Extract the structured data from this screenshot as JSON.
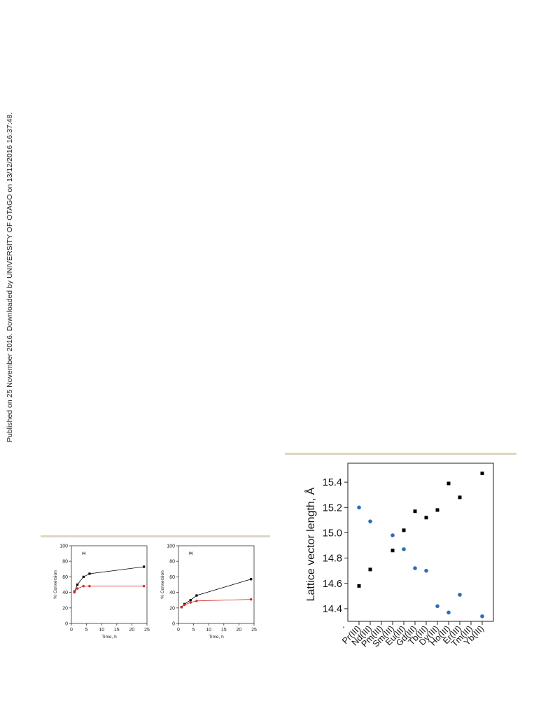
{
  "page": {
    "side_note": "Published on 25 November 2016. Downloaded by UNIVERSITY OF OTAGO on 13/12/2016 16:37:48."
  },
  "chart_data": [
    {
      "type": "line",
      "panel_label": "(a)",
      "xlabel": "Time, h",
      "ylabel": "% Conversion",
      "xlim": [
        0,
        25
      ],
      "ylim": [
        0,
        100
      ],
      "x_ticks": [
        "0",
        "5",
        "10",
        "15",
        "20",
        "25"
      ],
      "y_ticks": [
        "0",
        "20",
        "40",
        "60",
        "80",
        "100"
      ],
      "series": [
        {
          "color": "#000000",
          "marker": "square",
          "x": [
            1,
            2,
            4,
            6,
            24
          ],
          "y": [
            41,
            50,
            60,
            64,
            73
          ]
        },
        {
          "color": "#d62728",
          "marker": "circle",
          "x": [
            1,
            2,
            4,
            6,
            24
          ],
          "y": [
            40,
            45,
            48,
            48,
            48
          ]
        }
      ]
    },
    {
      "type": "line",
      "panel_label": "(b)",
      "xlabel": "Time, h",
      "ylabel": "% Conversion",
      "xlim": [
        0,
        25
      ],
      "ylim": [
        0,
        100
      ],
      "x_ticks": [
        "0",
        "5",
        "10",
        "15",
        "20",
        "25"
      ],
      "y_ticks": [
        "0",
        "20",
        "40",
        "60",
        "80",
        "100"
      ],
      "series": [
        {
          "color": "#000000",
          "marker": "square",
          "x": [
            1,
            2,
            4,
            6,
            24
          ],
          "y": [
            21,
            25,
            30,
            36,
            57
          ]
        },
        {
          "color": "#d62728",
          "marker": "circle",
          "x": [
            1,
            2,
            4,
            6,
            24
          ],
          "y": [
            21,
            24,
            27,
            29,
            31
          ]
        }
      ]
    },
    {
      "type": "scatter",
      "xlabel": "",
      "ylabel": "Lattice vector length, Å",
      "ylim": [
        14.3,
        15.55
      ],
      "y_ticks": [
        "14.4",
        "14.6",
        "14.8",
        "15.0",
        "15.2",
        "15.4"
      ],
      "categories": [
        "Pr(III)",
        "Nd(III)",
        "Pm(III)",
        "Sm(III)",
        "Eu(III)",
        "Gd(III)",
        "Tb(III)",
        "Dy(III)",
        "Ho(III)",
        "Er(III)",
        "Tm(III)",
        "Yb(III)"
      ],
      "stray_label": "’",
      "series": [
        {
          "color": "#000000",
          "marker": "square",
          "x": [
            "Pr(III)",
            "Nd(III)",
            "Sm(III)",
            "Eu(III)",
            "Gd(III)",
            "Tb(III)",
            "Dy(III)",
            "Ho(III)",
            "Er(III)",
            "Yb(III)"
          ],
          "y": [
            14.58,
            14.71,
            14.86,
            15.02,
            15.17,
            15.12,
            15.18,
            15.39,
            15.28,
            15.47
          ]
        },
        {
          "color": "#2f6db5",
          "marker": "circle",
          "x": [
            "Pr(III)",
            "Nd(III)",
            "Sm(III)",
            "Eu(III)",
            "Gd(III)",
            "Tb(III)",
            "Dy(III)",
            "Ho(III)",
            "Er(III)",
            "Yb(III)"
          ],
          "y": [
            15.2,
            15.09,
            14.98,
            14.87,
            14.72,
            14.7,
            14.42,
            14.37,
            14.51,
            14.34
          ]
        }
      ]
    }
  ]
}
